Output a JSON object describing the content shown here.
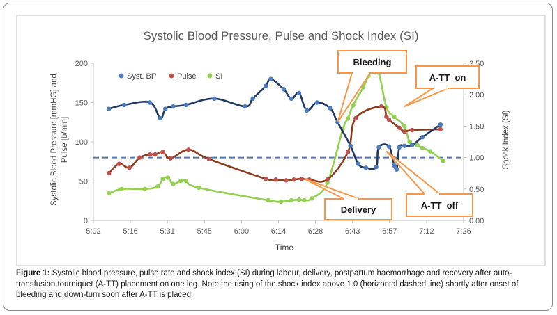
{
  "chart_data": {
    "type": "line",
    "title": "Systolic Blood Pressure, Pulse and Shock Index (SI)",
    "xlabel": "Time",
    "ylabel_left": "Systolic Blood Pressure [mmHG] and Pulse [b/min]",
    "ylabel_right": "Shock Index (SI)",
    "ylim_left": [
      0,
      200
    ],
    "ylim_right": [
      0,
      2.5
    ],
    "xlim_minutes_after_5_00": [
      2,
      146
    ],
    "x_tick_labels": [
      "5:02",
      "5:16",
      "5:31",
      "5:45",
      "6:00",
      "6:14",
      "6:28",
      "6:43",
      "6:57",
      "7:12",
      "7:26"
    ],
    "y_left_ticks": [
      "0",
      "50",
      "100",
      "150",
      "200"
    ],
    "y_right_ticks": [
      "0.00",
      "0.50",
      "1.00",
      "1.50",
      "2.00",
      "2.50"
    ],
    "legend": [
      "Syst. BP",
      "Pulse",
      "SI"
    ],
    "legend_position": "top-left",
    "reference_line": {
      "axis": "right",
      "value": 1.0,
      "style": "dashed"
    },
    "series": [
      {
        "name": "Syst. BP",
        "axis": "left",
        "color": "#1f3864",
        "marker": "#4a7bbf",
        "x": [
          8,
          14,
          24,
          28,
          30,
          33,
          38,
          49,
          61,
          64,
          69,
          71,
          76,
          79,
          82,
          85,
          89,
          94,
          97,
          102,
          105,
          108,
          112,
          113,
          117,
          119,
          120,
          121,
          123,
          126,
          130,
          137
        ],
        "y": [
          142,
          147,
          150,
          130,
          142,
          145,
          147,
          155,
          145,
          155,
          171,
          180,
          167,
          155,
          162,
          140,
          150,
          143,
          125,
          95,
          72,
          67,
          68,
          93,
          94,
          70,
          65,
          93,
          95,
          96,
          106,
          122
        ]
      },
      {
        "name": "Pulse",
        "axis": "left",
        "color": "#8b3a1a",
        "marker": "#c0504d",
        "x": [
          8,
          12,
          16,
          20,
          24,
          26,
          29,
          32,
          39,
          47,
          69,
          73,
          77,
          80,
          83,
          86,
          93,
          101,
          104,
          114,
          116,
          117,
          121,
          123,
          126,
          137
        ],
        "y": [
          60,
          72,
          67,
          80,
          84,
          84,
          87,
          79,
          90,
          78,
          53,
          52,
          51,
          52,
          53,
          52,
          52,
          87,
          130,
          145,
          132,
          128,
          118,
          113,
          115,
          116
        ]
      },
      {
        "name": "SI",
        "axis": "right",
        "color": "#92d050",
        "marker": "#92d050",
        "x": [
          8,
          13,
          22,
          27,
          29,
          31,
          33,
          36,
          38,
          43,
          70,
          75,
          79,
          82,
          84,
          87,
          93,
          99,
          101,
          103,
          107,
          109,
          111,
          113,
          116,
          119,
          123,
          125,
          128,
          130,
          133,
          138
        ],
        "y": [
          0.43,
          0.5,
          0.5,
          0.54,
          0.66,
          0.68,
          0.58,
          0.63,
          0.63,
          0.52,
          0.32,
          0.3,
          0.32,
          0.33,
          0.32,
          0.35,
          0.6,
          1.45,
          1.62,
          1.83,
          2.12,
          2.3,
          2.4,
          2.35,
          1.8,
          1.65,
          1.5,
          1.25,
          1.2,
          1.15,
          1.1,
          0.95
        ]
      }
    ],
    "annotations": [
      {
        "text": "Bleeding",
        "points_to_series": "Syst. BP",
        "x": 97,
        "y": 125
      },
      {
        "text": "A-TT  on",
        "points_to_series": "Syst. BP",
        "x": 123,
        "y": 145
      },
      {
        "text": "Delivery",
        "points_to_series": "Pulse",
        "x": 84,
        "y": 53
      },
      {
        "text": "A-TT  off",
        "points_to_series": "SI",
        "x": 116,
        "y": 1.1
      }
    ]
  },
  "caption": {
    "label": "Figure 1:",
    "text": " Systolic blood pressure, pulse rate and shock index (SI) during labour, delivery, postpartum haemorrhage and recovery after auto-transfusion tourniquet (A-TT) placement on one leg. Note the rising of the shock index above 1.0 (horizontal dashed line) shortly after onset of bleeding and down-turn soon after A-TT is placed."
  },
  "colors": {
    "frame_border": "#8a8a8a",
    "chart_border": "#bfbfbf",
    "dashed_line": "#4a7bbf",
    "callout_border": "#f79646",
    "callout_text": "#1a1a1a"
  }
}
